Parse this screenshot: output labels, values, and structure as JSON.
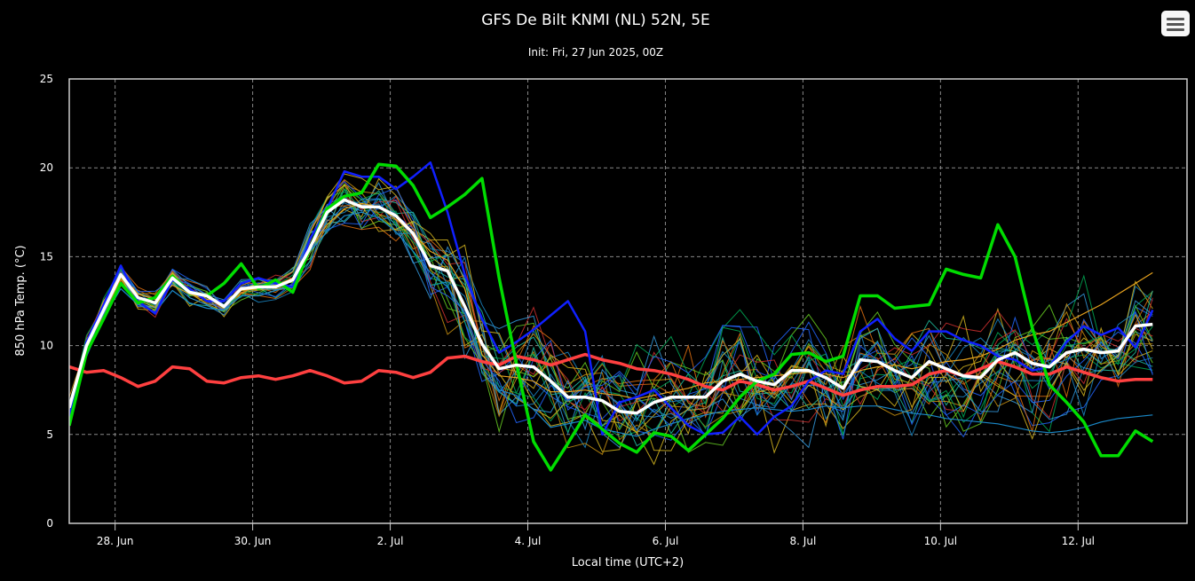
{
  "chart_data": {
    "type": "line",
    "title": "GFS De Bilt KNMI (NL) 52N, 5E",
    "subtitle": "Init: Fri, 27 Jun 2025, 00Z",
    "xlabel": "Local time (UTC+2)",
    "ylabel": "850 hPa Temp. (°C)",
    "ylim": [
      0,
      25
    ],
    "yticks": [
      0,
      5,
      10,
      15,
      20,
      25
    ],
    "xlim": [
      "2025-06-27T08:00",
      "2025-07-13T14:00"
    ],
    "x_step_hours": 6,
    "x_start": "2025-06-27T08:00",
    "xtick_labels": [
      "28. Jun",
      "30. Jun",
      "2. Jul",
      "4. Jul",
      "6. Jul",
      "8. Jul",
      "10. Jul",
      "12. Jul"
    ],
    "xtick_dates": [
      "2025-06-28",
      "2025-06-30",
      "2025-07-02",
      "2025-07-04",
      "2025-07-06",
      "2025-07-08",
      "2025-07-10",
      "2025-07-12"
    ],
    "grid": true,
    "legend": "none",
    "series": [
      {
        "role": "ensemble mean",
        "color": "#ffffff",
        "values": [
          6.5,
          10,
          12,
          14,
          12.7,
          12.4,
          13.8,
          13,
          12.8,
          12.2,
          13.2,
          13.3,
          13.3,
          13.7,
          15.5,
          17.5,
          18.2,
          17.8,
          17.8,
          17.3,
          16.3,
          14.5,
          14.2,
          12.2,
          10.1,
          8.7,
          8.9,
          8.8,
          8,
          7.1,
          7.1,
          6.9,
          6.3,
          6.2,
          6.8,
          7.1,
          7.1,
          7.1,
          8,
          8.4,
          8,
          7.8,
          8.6,
          8.6,
          8.2,
          7.6,
          9.2,
          9.1,
          8.6,
          8.2,
          9.1,
          8.7,
          8.3,
          8.2,
          9.2,
          9.6,
          9,
          8.8,
          9.6,
          9.8,
          9.6,
          9.7,
          11.1,
          11.2
        ]
      },
      {
        "role": "climatology",
        "color": "#ff4040",
        "values": [
          8.8,
          8.5,
          8.6,
          8.2,
          7.7,
          8,
          8.8,
          8.7,
          8,
          7.9,
          8.2,
          8.3,
          8.1,
          8.3,
          8.6,
          8.3,
          7.9,
          8,
          8.6,
          8.5,
          8.2,
          8.5,
          9.3,
          9.4,
          9.1,
          8.9,
          9.4,
          9.2,
          8.9,
          9.2,
          9.5,
          9.2,
          9,
          8.7,
          8.6,
          8.4,
          8.1,
          7.7,
          7.5,
          8,
          7.8,
          7.5,
          7.7,
          8,
          7.6,
          7.2,
          7.5,
          7.7,
          7.7,
          7.8,
          8.4,
          8.6,
          8.3,
          8.7,
          9.1,
          8.8,
          8.4,
          8.4,
          8.8,
          8.5,
          8.2,
          8,
          8.1,
          8.1
        ]
      },
      {
        "role": "control run",
        "color": "#00dd00",
        "values": [
          5.5,
          9.6,
          11.5,
          13.5,
          12.4,
          12.7,
          13.9,
          13,
          12.8,
          13.5,
          14.6,
          13.2,
          13.7,
          13,
          15.5,
          17.7,
          18.4,
          18.6,
          20.2,
          20.1,
          19,
          17.2,
          17.8,
          18.5,
          19.4,
          13.8,
          9,
          4.6,
          3,
          4.5,
          6.1,
          5.3,
          4.5,
          4,
          5.1,
          4.9,
          4.1,
          5,
          5.9,
          7.1,
          8,
          8.4,
          9.5,
          9.6,
          9.1,
          9.4,
          12.8,
          12.8,
          12.1,
          12.2,
          12.3,
          14.3,
          14,
          13.8,
          16.8,
          15,
          11,
          7.8,
          6.8,
          5.7,
          3.8,
          3.8,
          5.2,
          4.6
        ]
      },
      {
        "role": "operational run",
        "color": "#1020ff",
        "values": [
          6,
          10.2,
          12.3,
          14.5,
          12.5,
          11.8,
          13.7,
          13.2,
          12.5,
          12.5,
          13.5,
          13.8,
          13.5,
          13.3,
          16,
          17.7,
          19.8,
          19.5,
          19.5,
          18.8,
          19.5,
          20.3,
          17.5,
          14,
          11.5,
          9.6,
          10.2,
          10.9,
          11.7,
          12.5,
          10.8,
          5,
          6.8,
          7.1,
          7.5,
          6.5,
          5.5,
          5,
          5.1,
          6,
          5,
          6,
          6.6,
          8,
          8.6,
          8.4,
          10.8,
          11.5,
          10.4,
          9.7,
          10.8,
          10.8,
          10.3,
          10,
          9.4,
          9.2,
          8.6,
          8.8,
          10.2,
          11.1,
          10.6,
          11,
          9.9,
          12
        ]
      },
      {
        "role": "member",
        "color": "#1a88c8",
        "values": [
          6,
          9.6,
          11.6,
          13.2,
          12.3,
          11.9,
          13.1,
          12.4,
          12.1,
          12,
          12.8,
          12.8,
          13.1,
          13.4,
          15.3,
          16.4,
          17.3,
          17.5,
          17.2,
          16.4,
          15.3,
          14.1,
          13.3,
          11.8,
          8.8,
          7.5,
          7.2,
          6.4,
          5.4,
          5.6,
          5.8,
          5.3,
          5.1,
          4.9,
          5.3,
          5.6,
          5.9,
          6.1,
          6.3,
          6.4,
          6.5,
          6.4,
          6.3,
          6.4,
          6.6,
          6.5,
          6.6,
          6.6,
          6.4,
          6.2,
          6.1,
          5.9,
          5.8,
          5.7,
          5.6,
          5.4,
          5.2,
          5.1,
          5.2,
          5.4,
          5.7,
          5.9,
          6,
          6.1
        ]
      },
      {
        "role": "member",
        "color": "#e6a21e",
        "values": [
          6,
          10.2,
          12.5,
          14,
          12.9,
          12.6,
          13.4,
          12.9,
          12.6,
          12.5,
          13.1,
          13.2,
          13.4,
          13.8,
          15.5,
          16.8,
          17.7,
          18,
          17.8,
          17.1,
          16.3,
          15.3,
          14.8,
          13.2,
          9.5,
          8.3,
          8.2,
          8,
          7.4,
          7.4,
          7.5,
          7.3,
          7.2,
          7,
          7.2,
          7.4,
          7.6,
          7.9,
          8,
          8.1,
          8.2,
          8.3,
          8.4,
          8.5,
          8.4,
          8.2,
          8.6,
          8.8,
          8.9,
          8.7,
          8.9,
          9.1,
          9.2,
          9.4,
          9.8,
          10.3,
          10.6,
          10.8,
          11.3,
          11.8,
          12.3,
          12.9,
          13.5,
          14.1
        ]
      }
    ],
    "ensemble_spread": {
      "colors": [
        "#00aa55",
        "#1a88c8",
        "#2266ff",
        "#d8b820",
        "#e07010",
        "#20c0a0",
        "#66cc22",
        "#d03030",
        "#3399dd",
        "#c89010"
      ],
      "count": 24
    }
  },
  "toolbar": {
    "menu_icon": "hamburger-menu-icon"
  }
}
